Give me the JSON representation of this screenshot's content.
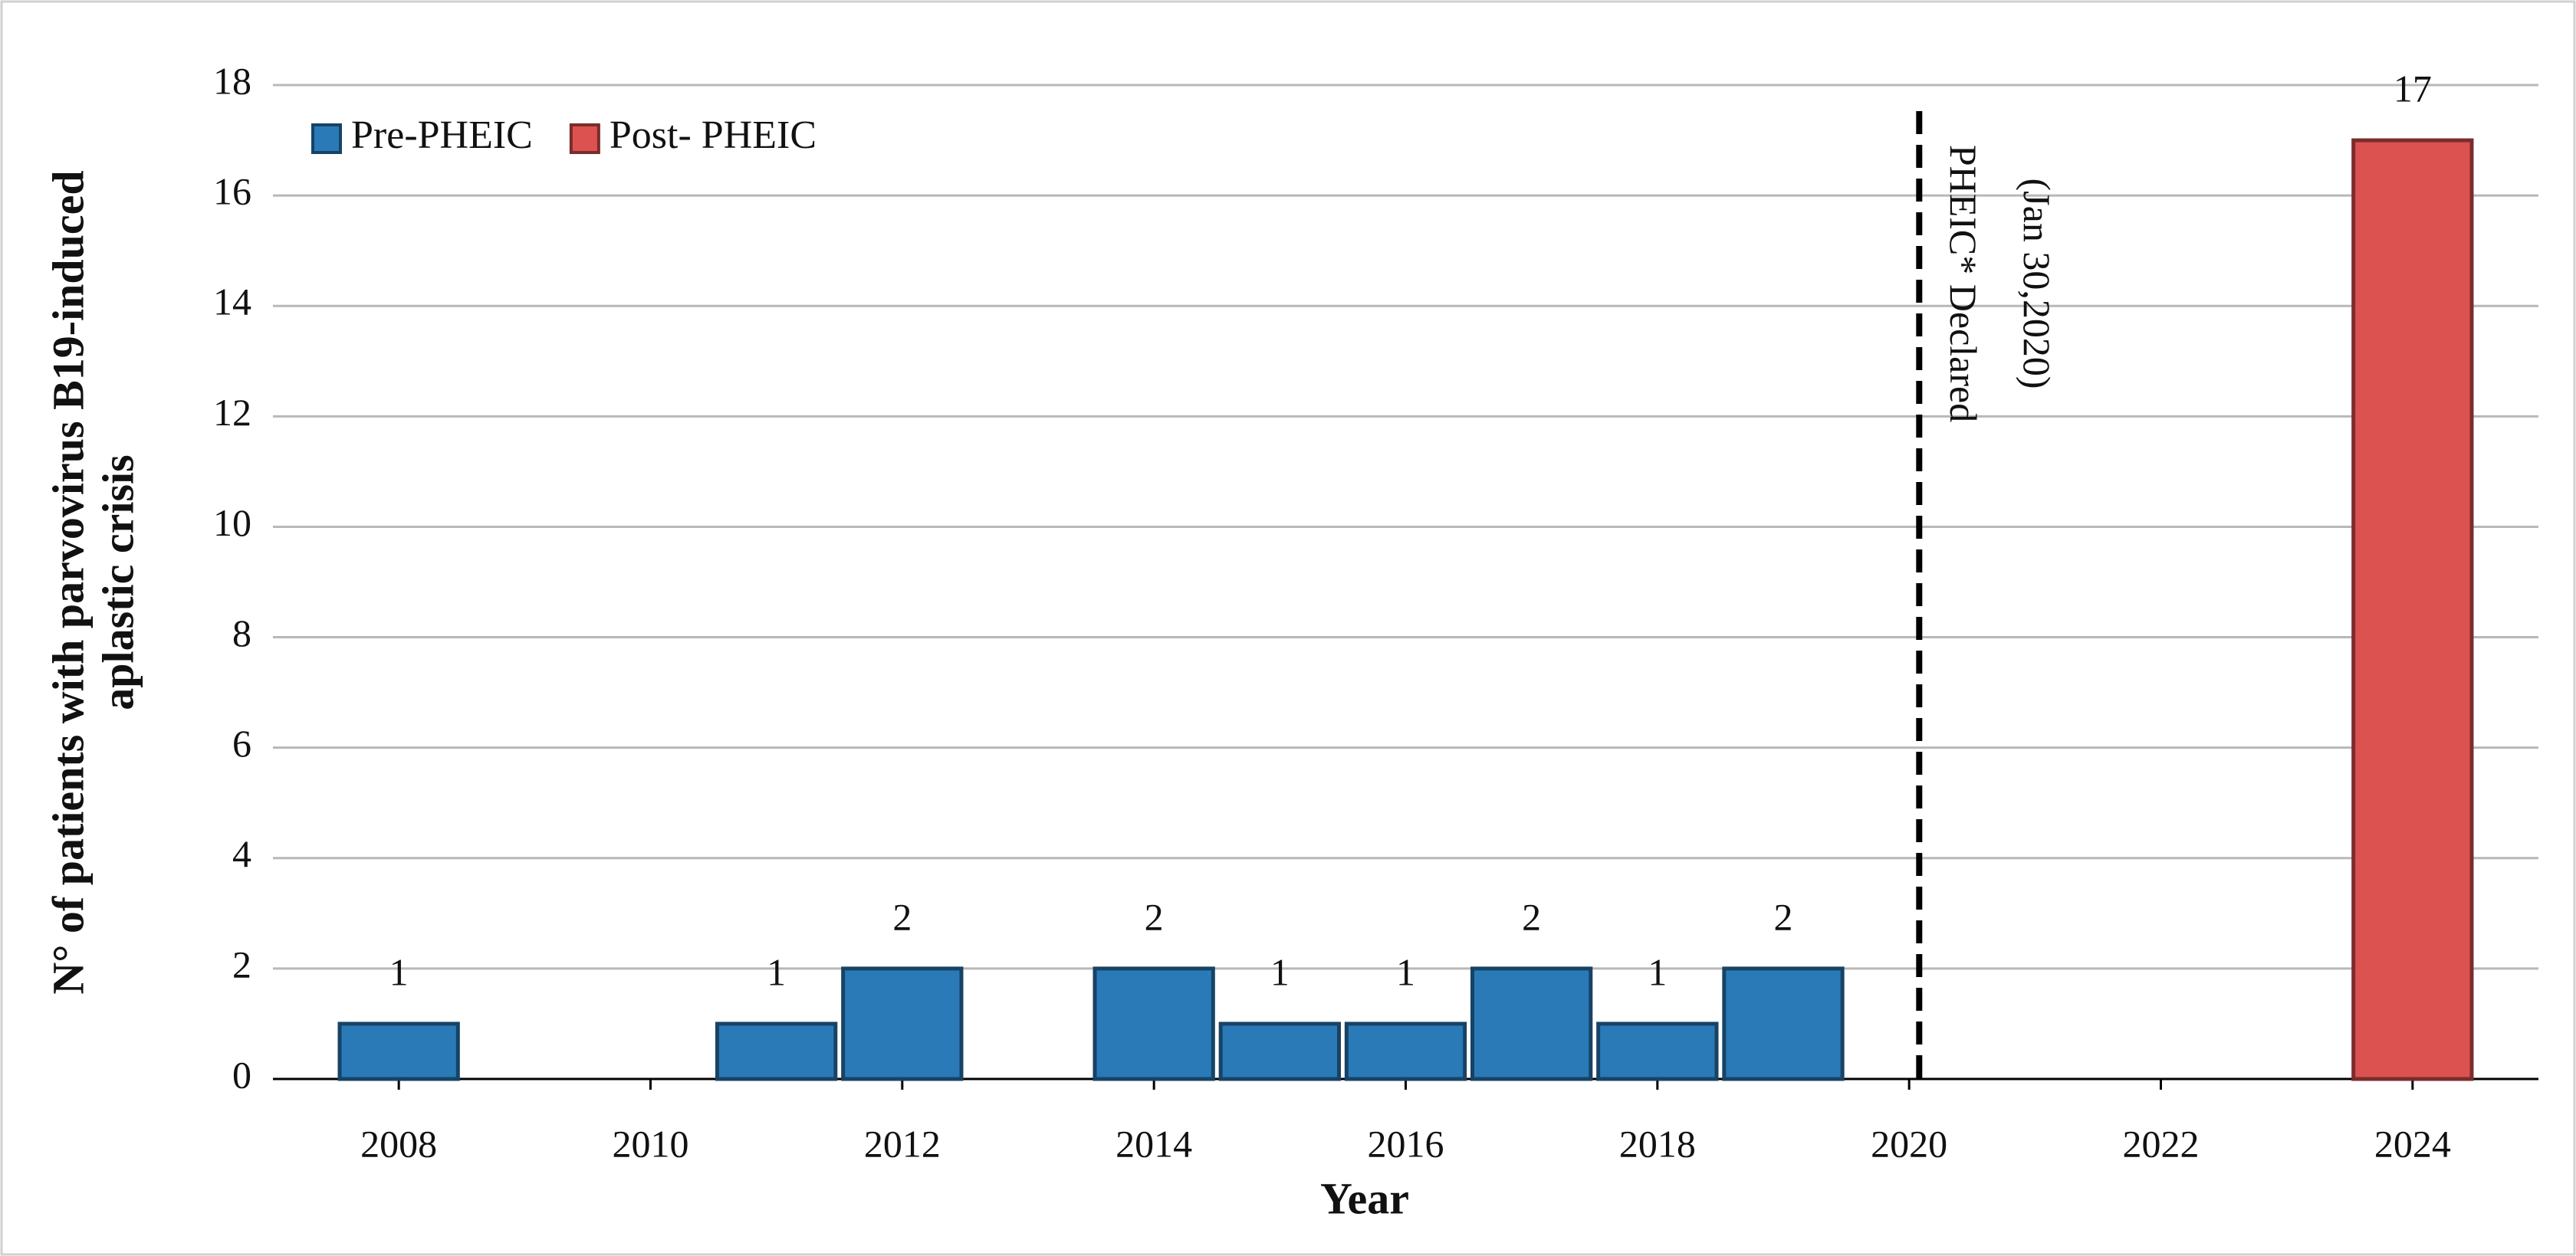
{
  "chart_data": {
    "type": "bar",
    "x_label": "Year",
    "y_label": [
      "N° of patients with parvovirus B19-induced",
      "aplastic crisis"
    ],
    "xlim": [
      2007,
      2025
    ],
    "xticks": [
      2008,
      2010,
      2012,
      2014,
      2016,
      2018,
      2020,
      2022,
      2024
    ],
    "ylim": [
      0,
      18
    ],
    "yticks": [
      0,
      2,
      4,
      6,
      8,
      10,
      12,
      14,
      16,
      18
    ],
    "grid": true,
    "legend": "upper left",
    "series": [
      {
        "name": "Pre-PHEIC",
        "color": "#2a7ab8",
        "x": [
          2008,
          2011,
          2012,
          2014,
          2015,
          2016,
          2017,
          2018,
          2019
        ],
        "values": [
          1,
          1,
          2,
          2,
          1,
          1,
          2,
          1,
          2
        ]
      },
      {
        "name": "Post- PHEIC",
        "color": "#dc5250",
        "x": [
          2024
        ],
        "values": [
          17
        ]
      }
    ],
    "annotation": {
      "x": 2020.08,
      "text": [
        "PHEIC* Declared",
        "(Jan 30,2020)"
      ]
    }
  }
}
